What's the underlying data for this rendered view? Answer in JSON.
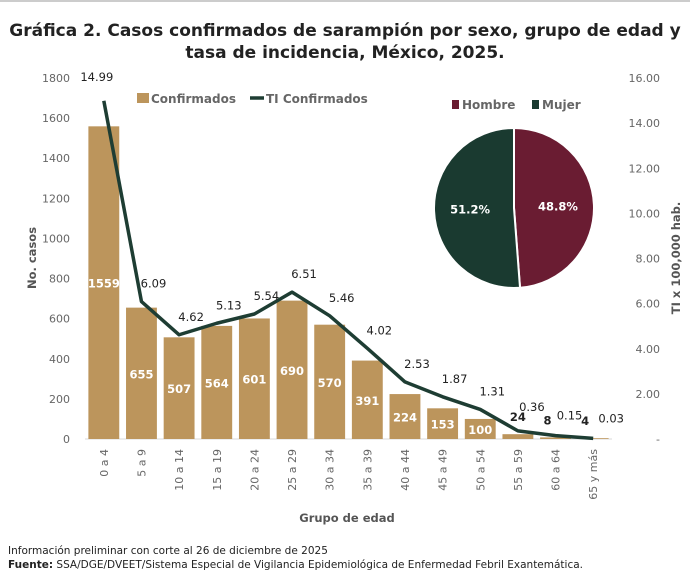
{
  "chart_data": {
    "type": "bar+line+pie",
    "title": "Gráfica 2. Casos confirmados de sarampión por sexo, grupo de edad y tasa de incidencia, México, 2025.",
    "xlabel": "Grupo de edad",
    "ylabel": "No. casos",
    "y2label": "TI x 100,000 hab.",
    "ylim": [
      0,
      1800
    ],
    "y2lim": [
      0,
      16
    ],
    "yticks": [
      "0",
      "200",
      "400",
      "600",
      "800",
      "1000",
      "1200",
      "1400",
      "1600",
      "1800"
    ],
    "y2ticks": [
      "-",
      "2.00",
      "4.00",
      "6.00",
      "8.00",
      "10.00",
      "12.00",
      "14.00",
      "16.00"
    ],
    "grid": false,
    "legend": "top",
    "categories": [
      "0 a 4",
      "5 a 9",
      "10 a 14",
      "15 a 19",
      "20 a 24",
      "25 a 29",
      "30 a 34",
      "35 a 39",
      "40 a 44",
      "45 a 49",
      "50 a 54",
      "55 a 59",
      "60 a 64",
      "65 y más"
    ],
    "series": [
      {
        "name": "Confirmados",
        "type": "bar",
        "axis": "left",
        "color": "#BC955C",
        "values": [
          1559,
          655,
          507,
          564,
          601,
          690,
          570,
          391,
          224,
          153,
          100,
          24,
          8,
          4
        ]
      },
      {
        "name": "TI Confirmados",
        "type": "line",
        "axis": "right",
        "color": "#1E3D33",
        "values": [
          14.99,
          6.09,
          4.62,
          5.13,
          5.54,
          6.51,
          5.46,
          4.02,
          2.53,
          1.87,
          1.31,
          0.36,
          0.15,
          0.03
        ]
      }
    ],
    "line_labels": [
      "14.99",
      "6.09",
      "4.62",
      "5.13",
      "5.54",
      "6.51",
      "5.46",
      "4.02",
      "2.53",
      "1.87",
      "1.31",
      "0.36",
      "0.15",
      "0.03"
    ],
    "pie": {
      "slices": [
        {
          "name": "Hombre",
          "value": 48.8,
          "label": "48.8%",
          "color": "#6A1C32"
        },
        {
          "name": "Mujer",
          "value": 51.2,
          "label": "51.2%",
          "color": "#1A3A30"
        }
      ]
    }
  },
  "footer": {
    "note": "Información preliminar con corte al 26 de diciembre de 2025",
    "source_label": "Fuente:",
    "source": " SSA/DGE/DVEET/Sistema Especial de Vigilancia Epidemiológica de Enfermedad Febril Exantemática."
  }
}
